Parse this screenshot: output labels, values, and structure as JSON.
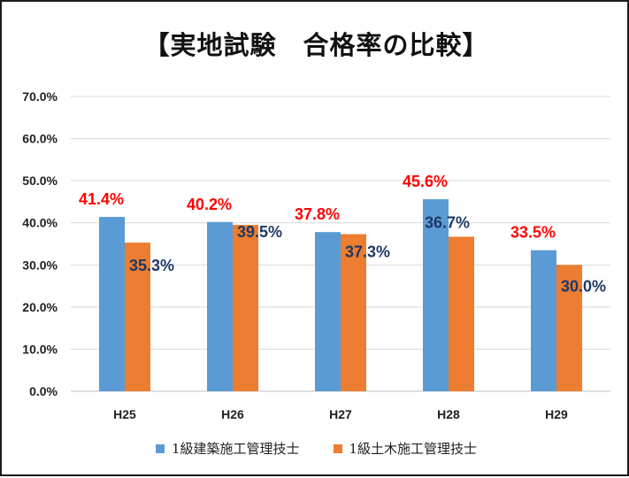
{
  "chart_data": {
    "type": "bar",
    "title": "【実地試験　合格率の比較】",
    "categories": [
      "H25",
      "H26",
      "H27",
      "H28",
      "H29"
    ],
    "ylim": [
      0,
      70
    ],
    "yticks": [
      "0.0%",
      "10.0%",
      "20.0%",
      "30.0%",
      "40.0%",
      "50.0%",
      "60.0%",
      "70.0%"
    ],
    "grid": true,
    "legend_position": "bottom",
    "series": [
      {
        "name": "1級建築施工管理技士",
        "values": [
          41.4,
          40.2,
          37.8,
          45.6,
          33.5
        ],
        "labels": [
          "41.4%",
          "40.2%",
          "37.8%",
          "45.6%",
          "33.5%"
        ],
        "color": "#5b9bd5",
        "label_color": "#ff0000"
      },
      {
        "name": "1級土木施工管理技士",
        "values": [
          35.3,
          39.5,
          37.3,
          36.7,
          30.0
        ],
        "labels": [
          "35.3%",
          "39.5%",
          "37.3%",
          "36.7%",
          "30.0%"
        ],
        "color": "#ed7d31",
        "label_color": "#1f3864"
      }
    ]
  }
}
